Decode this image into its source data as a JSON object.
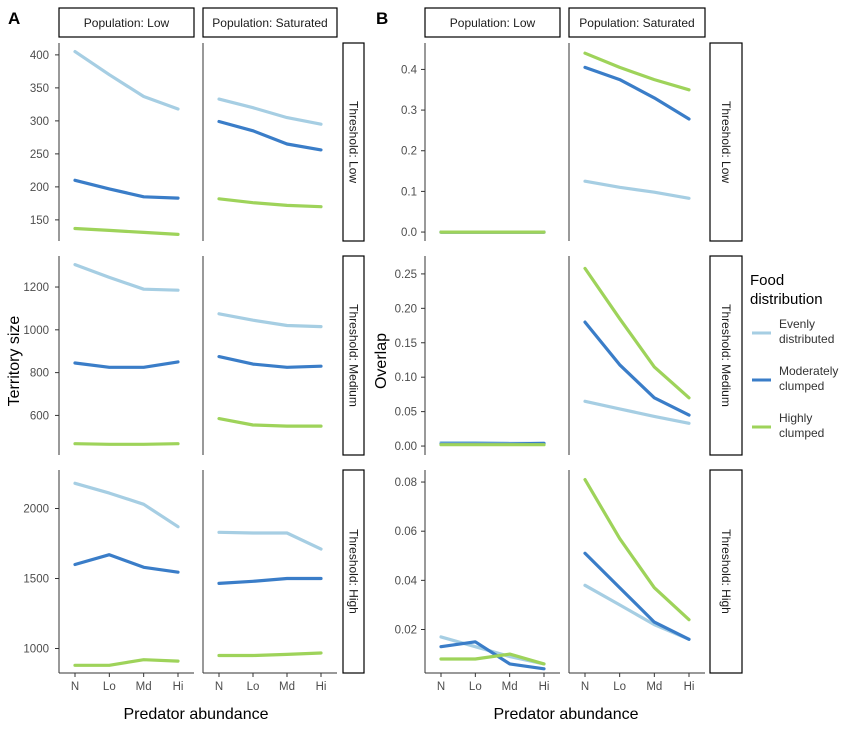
{
  "figure": {
    "panel_labels": [
      "A",
      "B"
    ],
    "colors": {
      "evenly": "#a6cee3",
      "moderate": "#3a7dc8",
      "highly": "#9ed35a"
    }
  },
  "legend": {
    "title_line1": "Food",
    "title_line2": "distribution",
    "items": [
      {
        "key": "evenly",
        "line1": "Evenly",
        "line2": "distributed"
      },
      {
        "key": "moderate",
        "line1": "Moderately",
        "line2": "clumped"
      },
      {
        "key": "highly",
        "line1": "Highly",
        "line2": "clumped"
      }
    ]
  },
  "chart_data": [
    {
      "type": "line",
      "panel": "A",
      "xlabel": "Predator abundance",
      "ylabel": "Territory size",
      "categories": [
        "N",
        "Lo",
        "Md",
        "Hi"
      ],
      "columns": [
        "Population: Low",
        "Population: Saturated"
      ],
      "rows": [
        "Threshold: Low",
        "Threshold: Medium",
        "Threshold: High"
      ],
      "facets": [
        {
          "row": 0,
          "ylim": [
            118,
            418
          ],
          "yticks": [
            150,
            200,
            250,
            300,
            350,
            400
          ],
          "columns": [
            [
              {
                "name": "evenly",
                "values": [
                  405,
                  370,
                  337,
                  318
                ]
              },
              {
                "name": "moderate",
                "values": [
                  210,
                  197,
                  185,
                  183
                ]
              },
              {
                "name": "highly",
                "values": [
                  137,
                  134,
                  131,
                  128
                ]
              }
            ],
            [
              {
                "name": "evenly",
                "values": [
                  333,
                  320,
                  305,
                  295
                ]
              },
              {
                "name": "moderate",
                "values": [
                  299,
                  285,
                  265,
                  256
                ]
              },
              {
                "name": "highly",
                "values": [
                  182,
                  176,
                  172,
                  170
                ]
              }
            ]
          ]
        },
        {
          "row": 1,
          "ylim": [
            415,
            1345
          ],
          "yticks": [
            600,
            800,
            1000,
            1200
          ],
          "columns": [
            [
              {
                "name": "evenly",
                "values": [
                  1305,
                  1245,
                  1190,
                  1185
                ]
              },
              {
                "name": "moderate",
                "values": [
                  845,
                  825,
                  825,
                  850
                ]
              },
              {
                "name": "highly",
                "values": [
                  468,
                  465,
                  465,
                  468
                ]
              }
            ],
            [
              {
                "name": "evenly",
                "values": [
                  1075,
                  1045,
                  1020,
                  1015
                ]
              },
              {
                "name": "moderate",
                "values": [
                  875,
                  840,
                  825,
                  830
                ]
              },
              {
                "name": "highly",
                "values": [
                  585,
                  555,
                  550,
                  550
                ]
              }
            ]
          ]
        },
        {
          "row": 2,
          "ylim": [
            825,
            2275
          ],
          "yticks": [
            1000,
            1500,
            2000
          ],
          "columns": [
            [
              {
                "name": "evenly",
                "values": [
                  2180,
                  2110,
                  2030,
                  1870
                ]
              },
              {
                "name": "moderate",
                "values": [
                  1600,
                  1670,
                  1580,
                  1545
                ]
              },
              {
                "name": "highly",
                "values": [
                  880,
                  880,
                  920,
                  910
                ]
              }
            ],
            [
              {
                "name": "evenly",
                "values": [
                  1830,
                  1825,
                  1825,
                  1710
                ]
              },
              {
                "name": "moderate",
                "values": [
                  1465,
                  1480,
                  1500,
                  1500
                ]
              },
              {
                "name": "highly",
                "values": [
                  950,
                  950,
                  958,
                  968
                ]
              }
            ]
          ]
        }
      ]
    },
    {
      "type": "line",
      "panel": "B",
      "xlabel": "Predator abundance",
      "ylabel": "Overlap",
      "categories": [
        "N",
        "Lo",
        "Md",
        "Hi"
      ],
      "columns": [
        "Population: Low",
        "Population: Saturated"
      ],
      "rows": [
        "Threshold: Low",
        "Threshold: Medium",
        "Threshold: High"
      ],
      "facets": [
        {
          "row": 0,
          "ylim": [
            -0.022,
            0.465
          ],
          "yticks": [
            0.0,
            0.1,
            0.2,
            0.3,
            0.4
          ],
          "yticklabels": [
            "0.0",
            "0.1",
            "0.2",
            "0.3",
            "0.4"
          ],
          "columns": [
            [
              {
                "name": "evenly",
                "values": [
                  0.0,
                  0.0,
                  0.0,
                  0.0
                ]
              },
              {
                "name": "moderate",
                "values": [
                  0.0,
                  0.0,
                  0.0,
                  0.0
                ]
              },
              {
                "name": "highly",
                "values": [
                  0.0,
                  0.0,
                  0.0,
                  0.0
                ]
              }
            ],
            [
              {
                "name": "evenly",
                "values": [
                  0.125,
                  0.11,
                  0.098,
                  0.083
                ]
              },
              {
                "name": "moderate",
                "values": [
                  0.405,
                  0.375,
                  0.33,
                  0.278
                ]
              },
              {
                "name": "highly",
                "values": [
                  0.44,
                  0.405,
                  0.375,
                  0.35
                ]
              }
            ]
          ]
        },
        {
          "row": 1,
          "ylim": [
            -0.013,
            0.276
          ],
          "yticks": [
            0.0,
            0.05,
            0.1,
            0.15,
            0.2,
            0.25
          ],
          "yticklabels": [
            "0.00",
            "0.05",
            "0.10",
            "0.15",
            "0.20",
            "0.25"
          ],
          "columns": [
            [
              {
                "name": "evenly",
                "values": [
                  0.005,
                  0.005,
                  0.004,
                  0.004
                ]
              },
              {
                "name": "moderate",
                "values": [
                  0.003,
                  0.003,
                  0.003,
                  0.004
                ]
              },
              {
                "name": "highly",
                "values": [
                  0.002,
                  0.002,
                  0.002,
                  0.002
                ]
              }
            ],
            [
              {
                "name": "evenly",
                "values": [
                  0.065,
                  0.054,
                  0.043,
                  0.033
                ]
              },
              {
                "name": "moderate",
                "values": [
                  0.18,
                  0.118,
                  0.07,
                  0.045
                ]
              },
              {
                "name": "highly",
                "values": [
                  0.258,
                  0.185,
                  0.115,
                  0.07
                ]
              }
            ]
          ]
        },
        {
          "row": 2,
          "ylim": [
            0.0023,
            0.0849
          ],
          "yticks": [
            0.02,
            0.04,
            0.06,
            0.08
          ],
          "yticklabels": [
            "0.02",
            "0.04",
            "0.06",
            "0.08"
          ],
          "columns": [
            [
              {
                "name": "evenly",
                "values": [
                  0.017,
                  0.013,
                  0.009,
                  0.006
                ]
              },
              {
                "name": "moderate",
                "values": [
                  0.013,
                  0.015,
                  0.006,
                  0.004
                ]
              },
              {
                "name": "highly",
                "values": [
                  0.008,
                  0.008,
                  0.01,
                  0.006
                ]
              }
            ],
            [
              {
                "name": "evenly",
                "values": [
                  0.038,
                  0.03,
                  0.022,
                  0.016
                ]
              },
              {
                "name": "moderate",
                "values": [
                  0.051,
                  0.037,
                  0.023,
                  0.016
                ]
              },
              {
                "name": "highly",
                "values": [
                  0.081,
                  0.057,
                  0.037,
                  0.024
                ]
              }
            ]
          ]
        }
      ]
    }
  ]
}
